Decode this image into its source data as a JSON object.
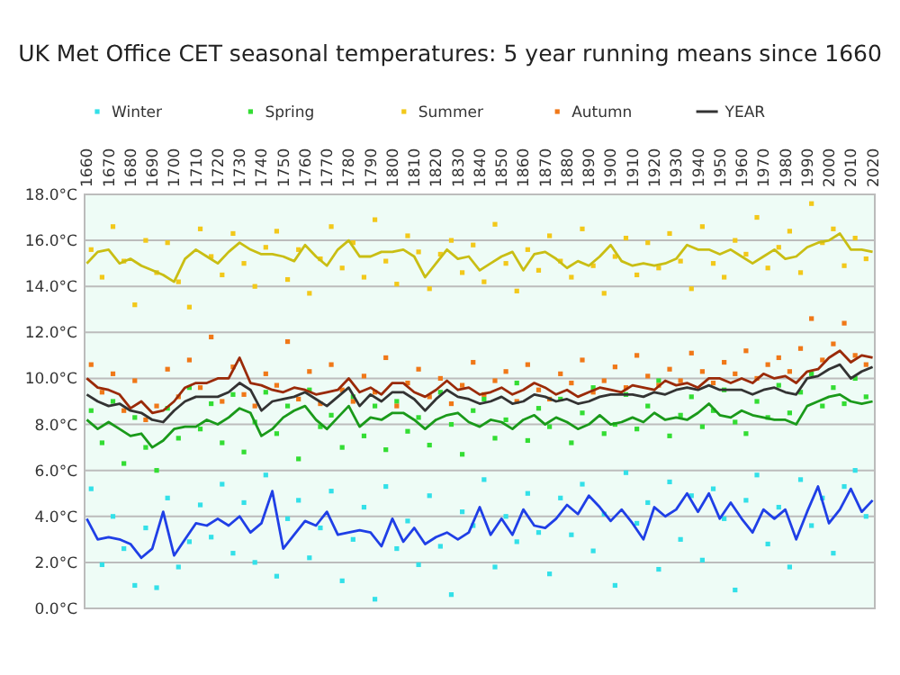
{
  "chart_data": {
    "type": "scatter",
    "title": "UK Met Office CET seasonal temperatures:  5 year running means since 1660",
    "x": [
      1660,
      1665,
      1670,
      1675,
      1680,
      1685,
      1690,
      1695,
      1700,
      1705,
      1710,
      1715,
      1720,
      1725,
      1730,
      1735,
      1740,
      1745,
      1750,
      1755,
      1760,
      1765,
      1770,
      1775,
      1780,
      1785,
      1790,
      1795,
      1800,
      1805,
      1810,
      1815,
      1820,
      1825,
      1830,
      1835,
      1840,
      1845,
      1850,
      1855,
      1860,
      1865,
      1870,
      1875,
      1880,
      1885,
      1890,
      1895,
      1900,
      1905,
      1910,
      1915,
      1920,
      1925,
      1930,
      1935,
      1940,
      1945,
      1950,
      1955,
      1960,
      1965,
      1970,
      1975,
      1980,
      1985,
      1990,
      1995,
      2000,
      2005,
      2010,
      2015,
      2020
    ],
    "xlim": [
      1659,
      2021
    ],
    "xticks": [
      1660,
      1670,
      1680,
      1690,
      1700,
      1710,
      1720,
      1730,
      1740,
      1750,
      1760,
      1770,
      1780,
      1790,
      1800,
      1810,
      1820,
      1830,
      1840,
      1850,
      1860,
      1870,
      1880,
      1890,
      1900,
      1910,
      1920,
      1930,
      1940,
      1950,
      1960,
      1970,
      1980,
      1990,
      2000,
      2010,
      2020
    ],
    "ylim": [
      0,
      18
    ],
    "yticks": [
      {
        "value": 0,
        "label": "0.0°C"
      },
      {
        "value": 2,
        "label": "2.0°C"
      },
      {
        "value": 4,
        "label": "4.0°C"
      },
      {
        "value": 6,
        "label": "6.0°C"
      },
      {
        "value": 8,
        "label": "8.0°C"
      },
      {
        "value": 10,
        "label": "10.0°C"
      },
      {
        "value": 12,
        "label": "12.0°C"
      },
      {
        "value": 14,
        "label": "14.0°C"
      },
      {
        "value": 16,
        "label": "16.0°C"
      },
      {
        "value": 18,
        "label": "18.0°C"
      }
    ],
    "grid": "y",
    "legend": "top",
    "series": [
      {
        "name": "Winter",
        "marker": "square",
        "color": "#33e0e8",
        "x": [
          1662,
          1667,
          1672,
          1677,
          1682,
          1687,
          1692,
          1697,
          1702,
          1707,
          1712,
          1717,
          1722,
          1727,
          1732,
          1737,
          1742,
          1747,
          1752,
          1757,
          1762,
          1767,
          1772,
          1777,
          1782,
          1787,
          1792,
          1797,
          1802,
          1807,
          1812,
          1817,
          1822,
          1827,
          1832,
          1837,
          1842,
          1847,
          1852,
          1857,
          1862,
          1867,
          1872,
          1877,
          1882,
          1887,
          1892,
          1897,
          1902,
          1907,
          1912,
          1917,
          1922,
          1927,
          1932,
          1937,
          1942,
          1947,
          1952,
          1957,
          1962,
          1967,
          1972,
          1977,
          1982,
          1987,
          1992,
          1997,
          2002,
          2007,
          2012,
          2017
        ],
        "values": [
          5.2,
          1.9,
          4.0,
          2.6,
          1.0,
          3.5,
          0.9,
          4.8,
          1.8,
          2.9,
          4.5,
          3.1,
          5.4,
          2.4,
          4.6,
          2.0,
          5.8,
          1.4,
          3.9,
          4.7,
          2.2,
          3.5,
          5.1,
          1.2,
          3.0,
          4.4,
          0.4,
          5.3,
          2.6,
          3.8,
          1.9,
          4.9,
          2.7,
          0.6,
          4.2,
          3.6,
          5.6,
          1.8,
          4.0,
          2.9,
          5.0,
          3.3,
          1.5,
          4.8,
          3.2,
          5.4,
          2.5,
          4.1,
          1.0,
          5.9,
          3.7,
          4.6,
          1.7,
          5.5,
          3.0,
          4.9,
          2.1,
          5.2,
          3.9,
          0.8,
          4.7,
          5.8,
          2.8,
          4.4,
          1.8,
          5.6,
          3.6,
          4.8,
          2.4,
          5.3,
          6.0,
          4.0
        ]
      },
      {
        "name": "Spring",
        "marker": "square",
        "color": "#33dd33",
        "x": [
          1662,
          1667,
          1672,
          1677,
          1682,
          1687,
          1692,
          1697,
          1702,
          1707,
          1712,
          1717,
          1722,
          1727,
          1732,
          1737,
          1742,
          1747,
          1752,
          1757,
          1762,
          1767,
          1772,
          1777,
          1782,
          1787,
          1792,
          1797,
          1802,
          1807,
          1812,
          1817,
          1822,
          1827,
          1832,
          1837,
          1842,
          1847,
          1852,
          1857,
          1862,
          1867,
          1872,
          1877,
          1882,
          1887,
          1892,
          1897,
          1902,
          1907,
          1912,
          1917,
          1922,
          1927,
          1932,
          1937,
          1942,
          1947,
          1952,
          1957,
          1962,
          1967,
          1972,
          1977,
          1982,
          1987,
          1992,
          1997,
          2002,
          2007,
          2012,
          2017
        ],
        "values": [
          8.6,
          7.2,
          9.0,
          6.3,
          8.3,
          7.0,
          6.0,
          8.7,
          7.4,
          9.6,
          7.8,
          8.9,
          7.2,
          9.3,
          6.8,
          8.1,
          9.4,
          7.6,
          8.8,
          6.5,
          9.5,
          7.9,
          8.4,
          7.0,
          9.2,
          7.5,
          8.8,
          6.9,
          9.0,
          7.7,
          8.3,
          7.1,
          9.4,
          8.0,
          6.7,
          8.6,
          9.1,
          7.4,
          8.2,
          9.8,
          7.3,
          8.7,
          7.9,
          9.1,
          7.2,
          8.5,
          9.6,
          7.6,
          8.0,
          9.3,
          7.8,
          8.8,
          9.9,
          7.5,
          8.4,
          9.2,
          7.9,
          8.6,
          9.5,
          8.1,
          7.6,
          9.0,
          8.3,
          9.7,
          8.5,
          9.4,
          10.2,
          8.8,
          9.6,
          8.9,
          10.0,
          9.2
        ]
      },
      {
        "name": "Summer",
        "marker": "square",
        "color": "#f2c81a",
        "x": [
          1662,
          1667,
          1672,
          1677,
          1682,
          1687,
          1692,
          1697,
          1702,
          1707,
          1712,
          1717,
          1722,
          1727,
          1732,
          1737,
          1742,
          1747,
          1752,
          1757,
          1762,
          1767,
          1772,
          1777,
          1782,
          1787,
          1792,
          1797,
          1802,
          1807,
          1812,
          1817,
          1822,
          1827,
          1832,
          1837,
          1842,
          1847,
          1852,
          1857,
          1862,
          1867,
          1872,
          1877,
          1882,
          1887,
          1892,
          1897,
          1902,
          1907,
          1912,
          1917,
          1922,
          1927,
          1932,
          1937,
          1942,
          1947,
          1952,
          1957,
          1962,
          1967,
          1972,
          1977,
          1982,
          1987,
          1992,
          1997,
          2002,
          2007,
          2012,
          2017
        ],
        "values": [
          15.6,
          14.4,
          16.6,
          15.1,
          13.2,
          16.0,
          14.6,
          15.9,
          14.2,
          13.1,
          16.5,
          15.3,
          14.5,
          16.3,
          15.0,
          14.0,
          15.7,
          16.4,
          14.3,
          15.6,
          13.7,
          15.2,
          16.6,
          14.8,
          15.9,
          14.4,
          16.9,
          15.1,
          14.1,
          16.2,
          15.5,
          13.9,
          15.4,
          16.0,
          14.6,
          15.8,
          14.2,
          16.7,
          15.0,
          13.8,
          15.6,
          14.7,
          16.2,
          15.1,
          14.4,
          16.5,
          14.9,
          13.7,
          15.3,
          16.1,
          14.5,
          15.9,
          14.8,
          16.3,
          15.1,
          13.9,
          16.6,
          15.0,
          14.4,
          16.0,
          15.4,
          17.0,
          14.8,
          15.7,
          16.4,
          14.6,
          17.6,
          15.9,
          16.5,
          14.9,
          16.1,
          15.2
        ]
      },
      {
        "name": "Autumn",
        "marker": "square",
        "color": "#f07818",
        "x": [
          1662,
          1667,
          1672,
          1677,
          1682,
          1687,
          1692,
          1697,
          1702,
          1707,
          1712,
          1717,
          1722,
          1727,
          1732,
          1737,
          1742,
          1747,
          1752,
          1757,
          1762,
          1767,
          1772,
          1777,
          1782,
          1787,
          1792,
          1797,
          1802,
          1807,
          1812,
          1817,
          1822,
          1827,
          1832,
          1837,
          1842,
          1847,
          1852,
          1857,
          1862,
          1867,
          1872,
          1877,
          1882,
          1887,
          1892,
          1897,
          1902,
          1907,
          1912,
          1917,
          1922,
          1927,
          1932,
          1937,
          1942,
          1947,
          1952,
          1957,
          1962,
          1967,
          1972,
          1977,
          1982,
          1987,
          1992,
          1997,
          2002,
          2007,
          2012,
          2017
        ],
        "values": [
          10.6,
          9.4,
          10.2,
          8.6,
          9.9,
          8.2,
          8.8,
          10.4,
          9.2,
          10.8,
          9.6,
          11.8,
          9.0,
          10.5,
          9.3,
          8.8,
          10.2,
          9.7,
          11.6,
          9.1,
          10.3,
          8.9,
          10.6,
          9.5,
          9.0,
          10.1,
          9.4,
          10.9,
          8.8,
          9.8,
          10.4,
          9.2,
          10.0,
          8.9,
          9.7,
          10.7,
          9.3,
          9.9,
          10.3,
          9.0,
          10.6,
          9.5,
          9.1,
          10.2,
          9.8,
          10.8,
          9.4,
          9.9,
          10.5,
          9.6,
          11.0,
          10.1,
          9.7,
          10.4,
          9.9,
          11.1,
          10.3,
          9.8,
          10.7,
          10.2,
          11.2,
          10.0,
          10.6,
          10.9,
          10.3,
          11.3,
          12.6,
          10.8,
          11.5,
          12.4,
          11.0,
          10.6
        ]
      },
      {
        "name": "YEAR",
        "type": "line",
        "marker": "none",
        "color": "#333333",
        "values": [
          9.3,
          9.0,
          8.8,
          8.9,
          8.6,
          8.5,
          8.2,
          8.1,
          8.6,
          9.0,
          9.2,
          9.2,
          9.2,
          9.4,
          9.8,
          9.5,
          8.6,
          9.0,
          9.1,
          9.2,
          9.4,
          9.1,
          8.8,
          9.2,
          9.6,
          8.8,
          9.3,
          9.0,
          9.4,
          9.4,
          9.1,
          8.6,
          9.1,
          9.5,
          9.2,
          9.1,
          8.9,
          9.0,
          9.2,
          8.9,
          9.0,
          9.3,
          9.2,
          9.0,
          9.1,
          8.9,
          9.0,
          9.2,
          9.3,
          9.3,
          9.3,
          9.2,
          9.4,
          9.3,
          9.5,
          9.6,
          9.5,
          9.7,
          9.5,
          9.5,
          9.5,
          9.3,
          9.5,
          9.6,
          9.4,
          9.3,
          10.0,
          10.1,
          10.4,
          10.6,
          10.0,
          10.3,
          10.5
        ]
      },
      {
        "type": "line",
        "marker": "none",
        "color": "#1f3fe6",
        "values": [
          3.9,
          3.0,
          3.1,
          3.0,
          2.8,
          2.2,
          2.6,
          4.2,
          2.3,
          3.0,
          3.7,
          3.6,
          3.9,
          3.6,
          4.0,
          3.3,
          3.7,
          5.1,
          2.6,
          3.2,
          3.8,
          3.6,
          4.2,
          3.2,
          3.3,
          3.4,
          3.3,
          2.7,
          3.9,
          2.9,
          3.5,
          2.8,
          3.1,
          3.3,
          3.0,
          3.3,
          4.4,
          3.2,
          3.9,
          3.2,
          4.3,
          3.6,
          3.5,
          3.9,
          4.5,
          4.1,
          4.9,
          4.4,
          3.8,
          4.3,
          3.7,
          3.0,
          4.4,
          4.0,
          4.3,
          5.0,
          4.2,
          5.0,
          3.9,
          4.6,
          3.9,
          3.3,
          4.3,
          3.9,
          4.3,
          3.0,
          4.2,
          5.3,
          3.7,
          4.3,
          5.2,
          4.2,
          4.7
        ]
      },
      {
        "type": "line",
        "marker": "none",
        "color": "#1a9a1a",
        "values": [
          8.2,
          7.8,
          8.1,
          7.8,
          7.5,
          7.6,
          7.0,
          7.3,
          7.8,
          7.9,
          7.9,
          8.2,
          8.0,
          8.3,
          8.7,
          8.5,
          7.5,
          7.8,
          8.3,
          8.6,
          8.8,
          8.2,
          7.8,
          8.3,
          8.8,
          7.9,
          8.3,
          8.2,
          8.5,
          8.5,
          8.2,
          7.8,
          8.2,
          8.4,
          8.5,
          8.1,
          7.9,
          8.2,
          8.1,
          7.8,
          8.2,
          8.4,
          8.0,
          8.3,
          8.1,
          7.8,
          8.0,
          8.4,
          8.0,
          8.1,
          8.3,
          8.1,
          8.5,
          8.2,
          8.3,
          8.2,
          8.5,
          8.9,
          8.4,
          8.3,
          8.6,
          8.4,
          8.3,
          8.2,
          8.2,
          8.0,
          8.8,
          9.0,
          9.2,
          9.3,
          9.0,
          8.9,
          9.0
        ]
      },
      {
        "type": "line",
        "marker": "none",
        "color": "#c9be14",
        "values": [
          15.0,
          15.5,
          15.6,
          15.0,
          15.2,
          14.9,
          14.7,
          14.5,
          14.2,
          15.2,
          15.6,
          15.3,
          15.0,
          15.5,
          15.9,
          15.6,
          15.4,
          15.4,
          15.3,
          15.1,
          15.8,
          15.3,
          14.9,
          15.6,
          16.0,
          15.3,
          15.3,
          15.5,
          15.5,
          15.6,
          15.3,
          14.4,
          15.0,
          15.6,
          15.2,
          15.3,
          14.7,
          15.0,
          15.3,
          15.5,
          14.7,
          15.4,
          15.5,
          15.2,
          14.8,
          15.1,
          14.9,
          15.3,
          15.8,
          15.1,
          14.9,
          15.0,
          14.9,
          15.0,
          15.2,
          15.8,
          15.6,
          15.6,
          15.4,
          15.6,
          15.3,
          15.0,
          15.3,
          15.6,
          15.2,
          15.3,
          15.7,
          15.9,
          16.0,
          16.3,
          15.6,
          15.6,
          15.5
        ]
      },
      {
        "type": "line",
        "marker": "none",
        "color": "#9a2a08",
        "values": [
          10.0,
          9.6,
          9.5,
          9.3,
          8.7,
          9.0,
          8.5,
          8.6,
          9.0,
          9.6,
          9.8,
          9.8,
          10.0,
          10.0,
          10.9,
          9.8,
          9.7,
          9.5,
          9.4,
          9.6,
          9.5,
          9.3,
          9.4,
          9.5,
          10.0,
          9.4,
          9.6,
          9.3,
          9.8,
          9.8,
          9.4,
          9.2,
          9.5,
          9.9,
          9.5,
          9.6,
          9.3,
          9.4,
          9.6,
          9.3,
          9.5,
          9.8,
          9.6,
          9.3,
          9.5,
          9.2,
          9.4,
          9.6,
          9.5,
          9.4,
          9.7,
          9.6,
          9.5,
          9.9,
          9.7,
          9.8,
          9.6,
          10.0,
          10.0,
          9.8,
          10.0,
          9.8,
          10.2,
          10.0,
          10.1,
          9.8,
          10.3,
          10.4,
          10.9,
          11.2,
          10.7,
          11.0,
          10.9
        ]
      }
    ]
  }
}
